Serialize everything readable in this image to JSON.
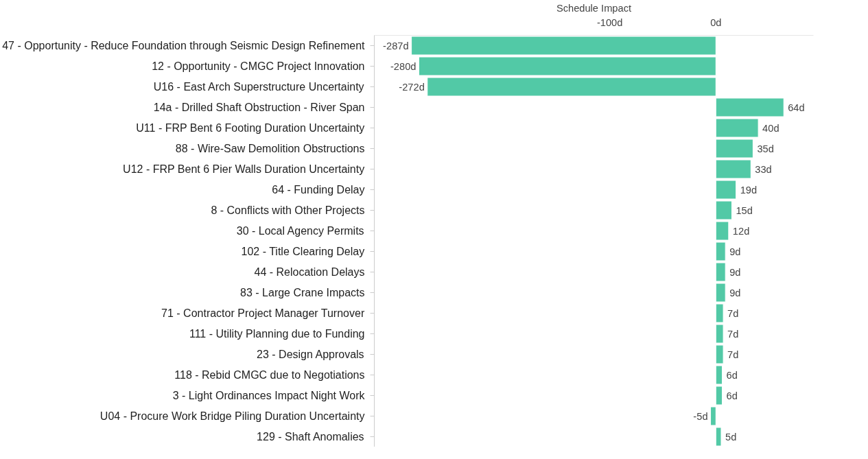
{
  "chart_data": {
    "type": "bar",
    "orientation": "horizontal",
    "xlabel": "Schedule Impact",
    "categories": [
      "47 - Opportunity - Reduce Foundation through Seismic Design Refinement",
      "12 - Opportunity - CMGC Project Innovation",
      "U16 - East Arch Superstructure Uncertainty",
      "14a - Drilled Shaft Obstruction - River Span",
      "U11 - FRP Bent 6 Footing Duration Uncertainty",
      "88 - Wire-Saw Demolition Obstructions",
      "U12 - FRP Bent 6 Pier Walls Duration Uncertainty",
      "64 - Funding Delay",
      "8 - Conflicts with Other Projects",
      "30 - Local Agency Permits",
      "102 - Title Clearing Delay",
      "44 - Relocation Delays",
      "83 - Large Crane Impacts",
      "71 - Contractor Project Manager Turnover",
      "111 - Utility Planning due to Funding",
      "23 - Design Approvals",
      "118 - Rebid CMGC due to Negotiations",
      "3 - Light Ordinances Impact Night Work",
      "U04 - Procure Work Bridge Piling Duration Uncertainty",
      "129 - Shaft Anomalies"
    ],
    "values": [
      -287,
      -280,
      -272,
      64,
      40,
      35,
      33,
      19,
      15,
      12,
      9,
      9,
      9,
      7,
      7,
      7,
      6,
      6,
      -5,
      5
    ],
    "value_labels": [
      "-287d",
      "-280d",
      "-272d",
      "64d",
      "40d",
      "35d",
      "33d",
      "19d",
      "15d",
      "12d",
      "9d",
      "9d",
      "9d",
      "7d",
      "7d",
      "7d",
      "6d",
      "6d",
      "-5d",
      "5d"
    ],
    "color": "#52c9a6",
    "xlim": [
      -322,
      92
    ],
    "xticks": [
      {
        "value": -100,
        "label": "-100d"
      },
      {
        "value": 0,
        "label": "0d"
      }
    ],
    "grid": false
  }
}
